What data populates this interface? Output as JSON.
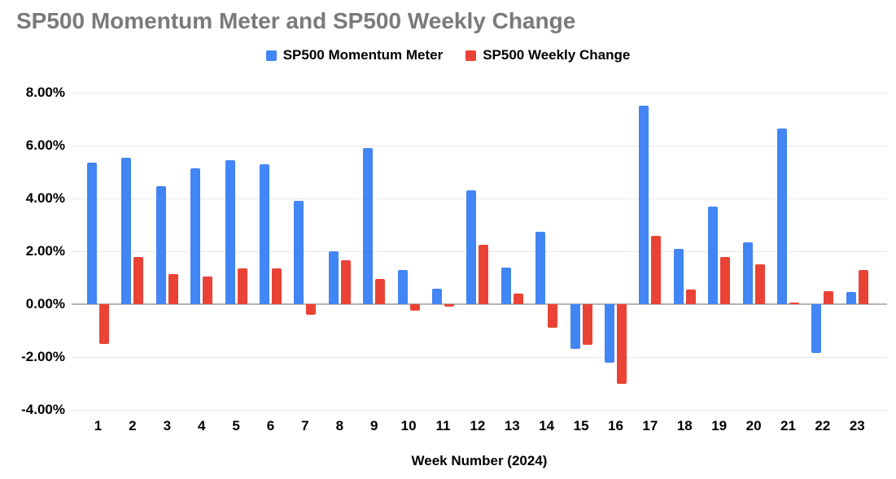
{
  "chart_data": {
    "type": "bar",
    "title": "SP500 Momentum Meter and SP500 Weekly Change",
    "xlabel": "Week Number (2024)",
    "ylabel": "",
    "categories": [
      "1",
      "2",
      "3",
      "4",
      "5",
      "6",
      "7",
      "8",
      "9",
      "10",
      "11",
      "12",
      "13",
      "14",
      "15",
      "16",
      "17",
      "18",
      "19",
      "20",
      "21",
      "22",
      "23"
    ],
    "series": [
      {
        "name": "SP500 Momentum Meter",
        "color": "#4285F4",
        "values": [
          5.35,
          5.55,
          4.45,
          5.15,
          5.45,
          5.3,
          3.9,
          2.0,
          5.9,
          1.3,
          0.6,
          4.3,
          1.4,
          2.75,
          -1.7,
          -2.2,
          7.5,
          2.1,
          3.7,
          2.35,
          6.65,
          -1.85,
          0.45
        ]
      },
      {
        "name": "SP500 Weekly Change",
        "color": "#EA4335",
        "values": [
          -1.5,
          1.8,
          1.15,
          1.05,
          1.35,
          1.35,
          -0.4,
          1.65,
          0.95,
          -0.25,
          -0.1,
          2.25,
          0.4,
          -0.9,
          -1.55,
          -3.0,
          2.6,
          0.55,
          1.8,
          1.5,
          0.05,
          0.5,
          1.3
        ]
      }
    ],
    "y_ticks": [
      {
        "value": 8,
        "label": "8.00%"
      },
      {
        "value": 6,
        "label": "6.00%"
      },
      {
        "value": 4,
        "label": "4.00%"
      },
      {
        "value": 2,
        "label": "2.00%"
      },
      {
        "value": 0,
        "label": "0.00%"
      },
      {
        "value": -2,
        "label": "-2.00%"
      },
      {
        "value": -4,
        "label": "-4.00%"
      }
    ],
    "ylim": [
      -4,
      8
    ],
    "grid": true,
    "legend_position": "top",
    "colors": {
      "title_text": "#7a7a7a",
      "axis_line": "#b5b5b5",
      "gridline": "#e8e8e8",
      "label_text": "#000000",
      "background": "#ffffff"
    }
  }
}
